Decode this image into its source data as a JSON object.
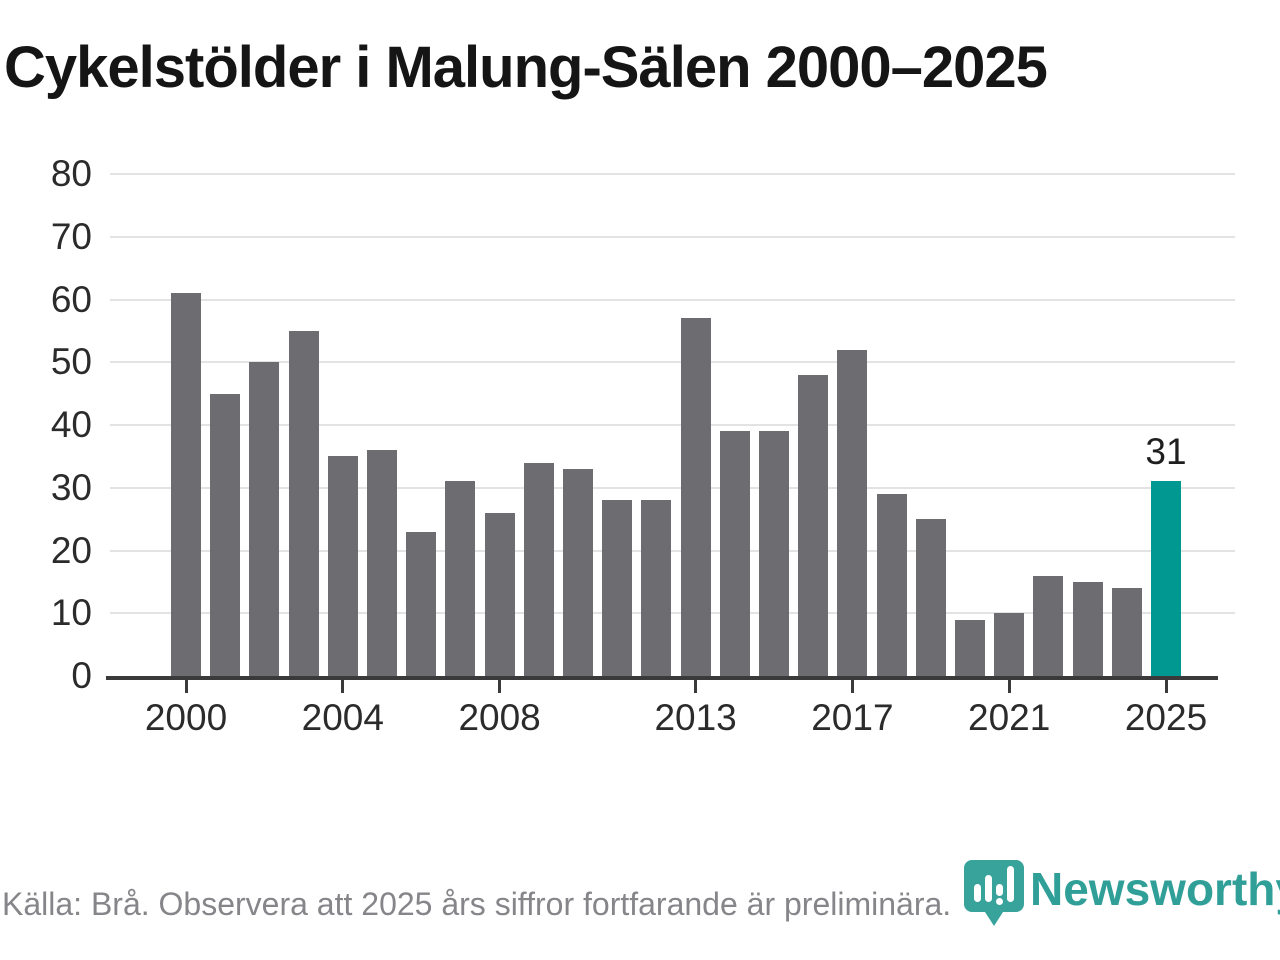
{
  "title": "Cykelstölder i Malung-Sälen 2000–2025",
  "chart_data": {
    "type": "bar",
    "title": "Cykelstölder i Malung-Sälen 2000–2025",
    "x": [
      2000,
      2001,
      2002,
      2003,
      2004,
      2005,
      2006,
      2007,
      2008,
      2009,
      2010,
      2011,
      2012,
      2013,
      2014,
      2015,
      2016,
      2017,
      2018,
      2019,
      2020,
      2021,
      2022,
      2023,
      2024,
      2025
    ],
    "values": [
      61,
      45,
      50,
      55,
      35,
      36,
      23,
      31,
      26,
      34,
      33,
      28,
      28,
      57,
      39,
      39,
      48,
      52,
      29,
      25,
      9,
      10,
      16,
      15,
      14,
      31
    ],
    "highlight_x": 2025,
    "annotations": [
      {
        "x": 2025,
        "text": "31"
      }
    ],
    "ylim": [
      0,
      80
    ],
    "ytick_step": 10,
    "xticks": [
      2000,
      2004,
      2008,
      2013,
      2017,
      2021,
      2025
    ],
    "grid": "horizontal",
    "legend": "none",
    "colors": {
      "bar": "#6c6c71",
      "highlight": "#009891",
      "grid": "#e3e3e3",
      "axis": "#3a3a3a"
    }
  },
  "footer": {
    "source_text": "Källa: Brå. Observera att 2025 års siffror fortfarande är preliminära.",
    "brand": "Newsworthy",
    "brand_color": "#2f9f98",
    "brand_icon": "newsworthy-pin-barchart-icon"
  }
}
